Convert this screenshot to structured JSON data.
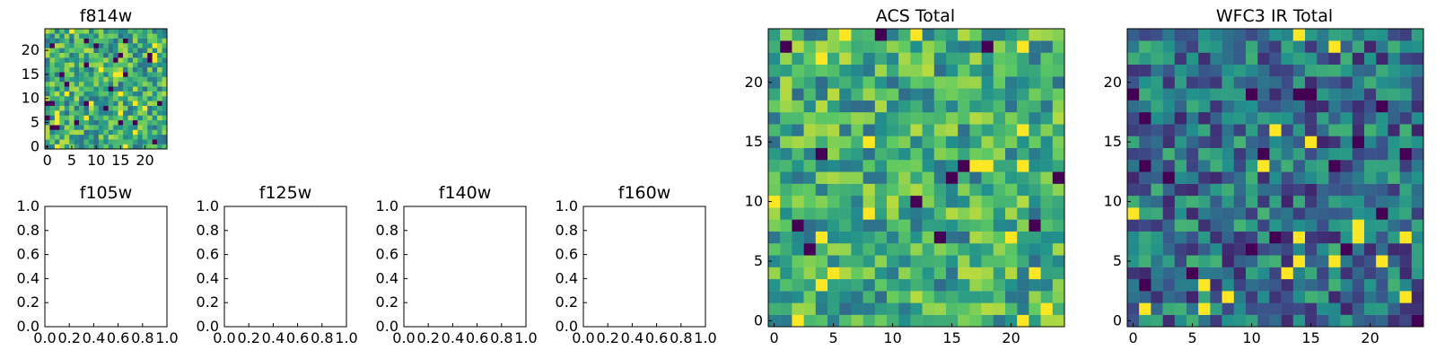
{
  "chart_data": [
    {
      "type": "heatmap",
      "title": "f814w",
      "size": 25,
      "colormap": "viridis",
      "seed": 814,
      "xticks": [
        0,
        5,
        10,
        15,
        20
      ],
      "xtick_labels": [
        "0",
        "5",
        "10",
        "15",
        "20"
      ],
      "yticks": [
        0,
        5,
        10,
        15,
        20
      ],
      "ytick_labels": [
        "0",
        "5",
        "10",
        "15",
        "20"
      ],
      "bias": 0.62
    },
    {
      "type": "heatmap",
      "title": "ACS Total",
      "size": 25,
      "colormap": "viridis",
      "seed": 1001,
      "xticks": [
        0,
        5,
        10,
        15,
        20
      ],
      "xtick_labels": [
        "0",
        "5",
        "10",
        "15",
        "20"
      ],
      "yticks": [
        0,
        5,
        10,
        15,
        20
      ],
      "ytick_labels": [
        "0",
        "5",
        "10",
        "15",
        "20"
      ],
      "bias": 0.62
    },
    {
      "type": "heatmap",
      "title": "WFC3 IR Total",
      "size": 25,
      "colormap": "viridis",
      "seed": 2002,
      "xticks": [
        0,
        5,
        10,
        15,
        20
      ],
      "xtick_labels": [
        "0",
        "5",
        "10",
        "15",
        "20"
      ],
      "yticks": [
        0,
        5,
        10,
        15,
        20
      ],
      "ytick_labels": [
        "0",
        "5",
        "10",
        "15",
        "20"
      ],
      "bias": 0.38
    },
    {
      "type": "scatter",
      "title": "f105w",
      "xlim": [
        0,
        1
      ],
      "ylim": [
        0,
        1
      ],
      "xtick_labels": [
        "0.0",
        "0.2",
        "0.4",
        "0.6",
        "0.8",
        "1.0"
      ],
      "ytick_labels": [
        "0.0",
        "0.2",
        "0.4",
        "0.6",
        "0.8",
        "1.0"
      ],
      "series": []
    },
    {
      "type": "scatter",
      "title": "f125w",
      "xlim": [
        0,
        1
      ],
      "ylim": [
        0,
        1
      ],
      "xtick_labels": [
        "0.0",
        "0.2",
        "0.4",
        "0.6",
        "0.8",
        "1.0"
      ],
      "ytick_labels": [
        "0.0",
        "0.2",
        "0.4",
        "0.6",
        "0.8",
        "1.0"
      ],
      "series": []
    },
    {
      "type": "scatter",
      "title": "f140w",
      "xlim": [
        0,
        1
      ],
      "ylim": [
        0,
        1
      ],
      "xtick_labels": [
        "0.0",
        "0.2",
        "0.4",
        "0.6",
        "0.8",
        "1.0"
      ],
      "ytick_labels": [
        "0.0",
        "0.2",
        "0.4",
        "0.6",
        "0.8",
        "1.0"
      ],
      "series": []
    },
    {
      "type": "scatter",
      "title": "f160w",
      "xlim": [
        0,
        1
      ],
      "ylim": [
        0,
        1
      ],
      "xtick_labels": [
        "0.0",
        "0.2",
        "0.4",
        "0.6",
        "0.8",
        "1.0"
      ],
      "ytick_labels": [
        "0.0",
        "0.2",
        "0.4",
        "0.6",
        "0.8",
        "1.0"
      ],
      "series": []
    }
  ]
}
